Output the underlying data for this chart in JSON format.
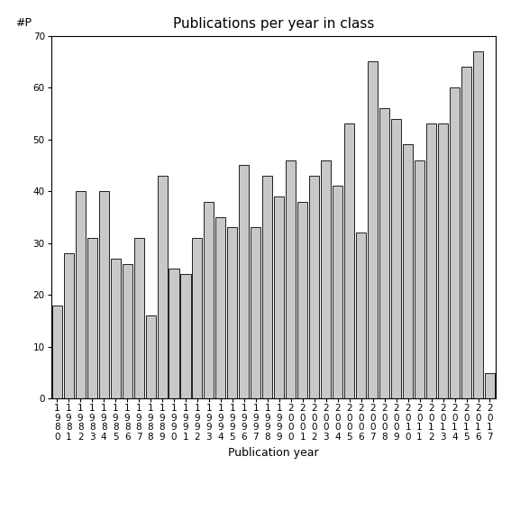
{
  "title": "Publications per year in class",
  "xlabel": "Publication year",
  "ylabel": "#P",
  "bar_color": "#c8c8c8",
  "edge_color": "#000000",
  "background_color": "#ffffff",
  "ylim": [
    0,
    70
  ],
  "yticks": [
    0,
    10,
    20,
    30,
    40,
    50,
    60,
    70
  ],
  "categories": [
    "1980",
    "1981",
    "1982",
    "1983",
    "1984",
    "1985",
    "1986",
    "1987",
    "1988",
    "1989",
    "1990",
    "1991",
    "1992",
    "1993",
    "1994",
    "1995",
    "1996",
    "1997",
    "1998",
    "1999",
    "2000",
    "2001",
    "2002",
    "2003",
    "2004",
    "2005",
    "2006",
    "2007",
    "2008",
    "2009",
    "2010",
    "2011",
    "2012",
    "2013",
    "2014",
    "2015",
    "2016",
    "2017"
  ],
  "values": [
    18,
    28,
    40,
    31,
    40,
    27,
    26,
    31,
    16,
    43,
    25,
    24,
    31,
    38,
    35,
    33,
    45,
    33,
    43,
    39,
    46,
    38,
    43,
    46,
    41,
    53,
    32,
    65,
    56,
    54,
    49,
    46,
    53,
    53,
    60,
    64,
    67,
    5
  ],
  "title_fontsize": 11,
  "axis_fontsize": 9,
  "tick_fontsize": 7.5,
  "ylabel_fontsize": 9
}
